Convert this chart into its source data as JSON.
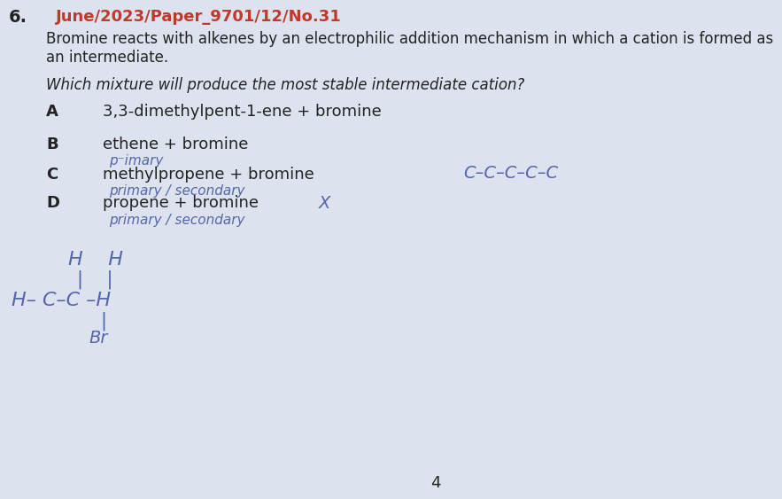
{
  "bg_color": "#dce3ef",
  "title_number": "6.",
  "title_ref": "June/2023/Paper_9701/12/No.31",
  "title_ref_color": "#c0392b",
  "question_line1": "Bromine reacts with alkenes by an electrophilic addition mechanism in which a cation is formed as",
  "question_line2": "an intermediate.",
  "question_line3": "Which mixture will produce the most stable intermediate cation?",
  "options": [
    {
      "letter": "A",
      "text": "3,3-dimethylpent-1-ene + bromine"
    },
    {
      "letter": "B",
      "text": "ethene + bromine"
    },
    {
      "letter": "C",
      "text": "methylpropene + bromine"
    },
    {
      "letter": "D",
      "text": "propene + bromine"
    }
  ],
  "handwritten_color": "#5566aa",
  "page_number": "4",
  "text_color": "#222222"
}
